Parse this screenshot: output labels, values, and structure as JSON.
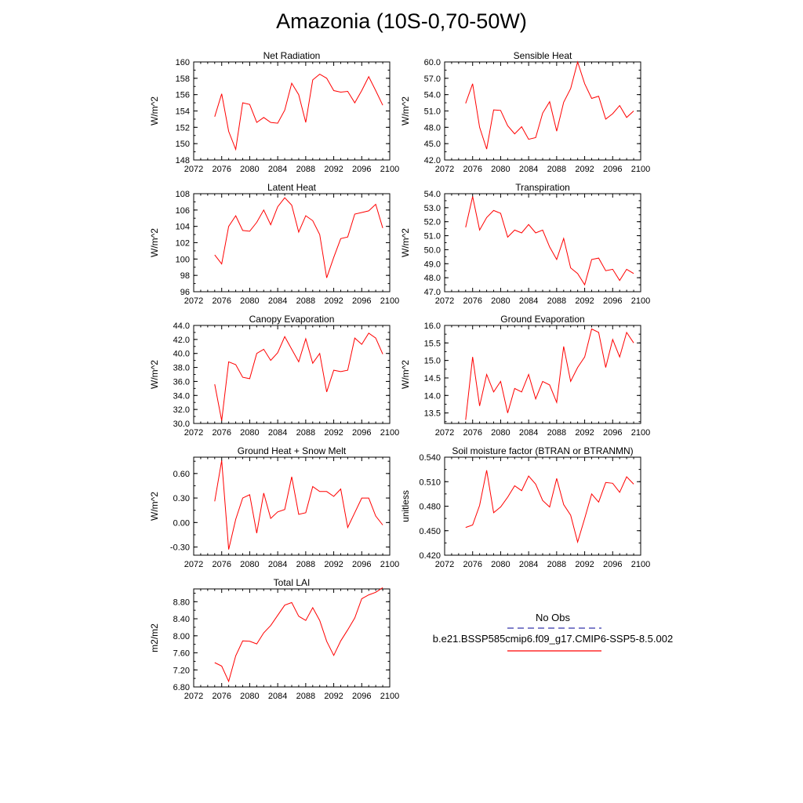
{
  "title": "Amazonia (10S-0,70-50W)",
  "legend": {
    "items": [
      {
        "label": "No Obs",
        "color": "#3333aa",
        "dash": "8,5"
      },
      {
        "label": "b.e21.BSSP585cmip6.f09_g17.CMIP6-SSP5-8.5.002",
        "color": "#ff0000",
        "dash": ""
      }
    ]
  },
  "chart_data": [
    {
      "type": "line",
      "title": "Net Radiation",
      "ylabel": "W/m^2",
      "xlim": [
        2072,
        2100
      ],
      "xticks": [
        "2072",
        "2076",
        "2080",
        "2084",
        "2088",
        "2092",
        "2096",
        "2100"
      ],
      "ylim": [
        148,
        160
      ],
      "yticks": [
        "148",
        "150",
        "152",
        "154",
        "156",
        "158",
        "160"
      ],
      "x": [
        2075,
        2076,
        2077,
        2078,
        2079,
        2080,
        2081,
        2082,
        2083,
        2084,
        2085,
        2086,
        2087,
        2088,
        2089,
        2090,
        2091,
        2092,
        2093,
        2094,
        2095,
        2096,
        2097,
        2098,
        2099
      ],
      "series": [
        {
          "color": "#ff0000",
          "values": [
            153.3,
            156.1,
            151.5,
            149.3,
            155.0,
            154.8,
            152.6,
            153.2,
            152.6,
            152.5,
            154.1,
            157.4,
            156.0,
            152.6,
            157.8,
            158.5,
            158.0,
            156.5,
            156.3,
            156.4,
            155.0,
            156.5,
            158.2,
            156.5,
            154.7
          ]
        }
      ]
    },
    {
      "type": "line",
      "title": "Sensible Heat",
      "ylabel": "W/m^2",
      "xlim": [
        2072,
        2100
      ],
      "xticks": [
        "2072",
        "2076",
        "2080",
        "2084",
        "2088",
        "2092",
        "2096",
        "2100"
      ],
      "ylim": [
        42,
        60
      ],
      "yticks": [
        "42.0",
        "45.0",
        "48.0",
        "51.0",
        "54.0",
        "57.0",
        "60.0"
      ],
      "x": [
        2075,
        2076,
        2077,
        2078,
        2079,
        2080,
        2081,
        2082,
        2083,
        2084,
        2085,
        2086,
        2087,
        2088,
        2089,
        2090,
        2091,
        2092,
        2093,
        2094,
        2095,
        2096,
        2097,
        2098,
        2099
      ],
      "series": [
        {
          "color": "#ff0000",
          "values": [
            52.4,
            56.0,
            48.0,
            44.0,
            51.2,
            51.1,
            48.3,
            46.8,
            48.1,
            45.8,
            46.1,
            50.6,
            52.7,
            47.3,
            52.6,
            55.1,
            60.0,
            56.0,
            53.3,
            53.7,
            49.5,
            50.5,
            52.0,
            49.8,
            51.0
          ]
        }
      ]
    },
    {
      "type": "line",
      "title": "Latent Heat",
      "ylabel": "W/m^2",
      "xlim": [
        2072,
        2100
      ],
      "xticks": [
        "2072",
        "2076",
        "2080",
        "2084",
        "2088",
        "2092",
        "2096",
        "2100"
      ],
      "ylim": [
        96,
        108
      ],
      "yticks": [
        "96",
        "98",
        "100",
        "102",
        "104",
        "106",
        "108"
      ],
      "x": [
        2075,
        2076,
        2077,
        2078,
        2079,
        2080,
        2081,
        2082,
        2083,
        2084,
        2085,
        2086,
        2087,
        2088,
        2089,
        2090,
        2091,
        2092,
        2093,
        2094,
        2095,
        2096,
        2097,
        2098,
        2099
      ],
      "series": [
        {
          "color": "#ff0000",
          "values": [
            100.5,
            99.4,
            104.0,
            105.3,
            103.5,
            103.4,
            104.5,
            106.0,
            104.2,
            106.4,
            107.5,
            106.6,
            103.3,
            105.3,
            104.7,
            103.0,
            97.7,
            100.2,
            102.5,
            102.7,
            105.5,
            105.7,
            105.9,
            106.7,
            103.8
          ]
        }
      ]
    },
    {
      "type": "line",
      "title": "Transpiration",
      "ylabel": "W/m^2",
      "xlim": [
        2072,
        2100
      ],
      "xticks": [
        "2072",
        "2076",
        "2080",
        "2084",
        "2088",
        "2092",
        "2096",
        "2100"
      ],
      "ylim": [
        47,
        54
      ],
      "yticks": [
        "47.0",
        "48.0",
        "49.0",
        "50.0",
        "51.0",
        "52.0",
        "53.0",
        "54.0"
      ],
      "x": [
        2075,
        2076,
        2077,
        2078,
        2079,
        2080,
        2081,
        2082,
        2083,
        2084,
        2085,
        2086,
        2087,
        2088,
        2089,
        2090,
        2091,
        2092,
        2093,
        2094,
        2095,
        2096,
        2097,
        2098,
        2099
      ],
      "series": [
        {
          "color": "#ff0000",
          "values": [
            51.6,
            53.8,
            51.4,
            52.3,
            52.8,
            52.6,
            50.9,
            51.4,
            51.2,
            51.8,
            51.2,
            51.4,
            50.2,
            49.3,
            50.8,
            48.7,
            48.3,
            47.5,
            49.3,
            49.4,
            48.5,
            48.6,
            47.8,
            48.6,
            48.3
          ]
        }
      ]
    },
    {
      "type": "line",
      "title": "Canopy Evaporation",
      "ylabel": "W/m^2",
      "xlim": [
        2072,
        2100
      ],
      "xticks": [
        "2072",
        "2076",
        "2080",
        "2084",
        "2088",
        "2092",
        "2096",
        "2100"
      ],
      "ylim": [
        30,
        44
      ],
      "yticks": [
        "30.0",
        "32.0",
        "34.0",
        "36.0",
        "38.0",
        "40.0",
        "42.0",
        "44.0"
      ],
      "x": [
        2075,
        2076,
        2077,
        2078,
        2079,
        2080,
        2081,
        2082,
        2083,
        2084,
        2085,
        2086,
        2087,
        2088,
        2089,
        2090,
        2091,
        2092,
        2093,
        2094,
        2095,
        2096,
        2097,
        2098,
        2099
      ],
      "series": [
        {
          "color": "#ff0000",
          "values": [
            35.6,
            30.4,
            38.8,
            38.4,
            36.6,
            36.4,
            40.0,
            40.6,
            39.0,
            40.1,
            42.4,
            40.6,
            38.8,
            42.1,
            38.6,
            40.0,
            34.5,
            37.6,
            37.4,
            37.6,
            42.2,
            41.3,
            42.9,
            42.2,
            39.9
          ]
        }
      ]
    },
    {
      "type": "line",
      "title": "Ground Evaporation",
      "ylabel": "W/m^2",
      "xlim": [
        2072,
        2100
      ],
      "xticks": [
        "2072",
        "2076",
        "2080",
        "2084",
        "2088",
        "2092",
        "2096",
        "2100"
      ],
      "ylim": [
        13.2,
        16.0
      ],
      "yticks": [
        "13.5",
        "14.0",
        "14.5",
        "15.0",
        "15.5",
        "16.0"
      ],
      "x": [
        2075,
        2076,
        2077,
        2078,
        2079,
        2080,
        2081,
        2082,
        2083,
        2084,
        2085,
        2086,
        2087,
        2088,
        2089,
        2090,
        2091,
        2092,
        2093,
        2094,
        2095,
        2096,
        2097,
        2098,
        2099
      ],
      "series": [
        {
          "color": "#ff0000",
          "values": [
            13.3,
            15.1,
            13.7,
            14.6,
            14.1,
            14.4,
            13.5,
            14.2,
            14.1,
            14.6,
            13.9,
            14.4,
            14.3,
            13.8,
            15.4,
            14.4,
            14.8,
            15.1,
            15.9,
            15.8,
            14.8,
            15.6,
            15.1,
            15.8,
            15.5
          ]
        }
      ]
    },
    {
      "type": "line",
      "title": "Ground Heat + Snow Melt",
      "ylabel": "W/m^2",
      "xlim": [
        2072,
        2100
      ],
      "xticks": [
        "2072",
        "2076",
        "2080",
        "2084",
        "2088",
        "2092",
        "2096",
        "2100"
      ],
      "ylim": [
        -0.4,
        0.8
      ],
      "yticks": [
        "-0.30",
        "0.00",
        "0.30",
        "0.60"
      ],
      "x": [
        2075,
        2076,
        2077,
        2078,
        2079,
        2080,
        2081,
        2082,
        2083,
        2084,
        2085,
        2086,
        2087,
        2088,
        2089,
        2090,
        2091,
        2092,
        2093,
        2094,
        2095,
        2096,
        2097,
        2098,
        2099
      ],
      "series": [
        {
          "color": "#ff0000",
          "values": [
            0.26,
            0.76,
            -0.33,
            0.04,
            0.3,
            0.34,
            -0.13,
            0.36,
            0.05,
            0.13,
            0.16,
            0.56,
            0.1,
            0.12,
            0.44,
            0.38,
            0.38,
            0.32,
            0.41,
            -0.06,
            0.12,
            0.3,
            0.3,
            0.08,
            -0.03
          ]
        }
      ]
    },
    {
      "type": "line",
      "title": "Soil moisture factor (BTRAN or BTRANMN)",
      "ylabel": "unitless",
      "xlim": [
        2072,
        2100
      ],
      "xticks": [
        "2072",
        "2076",
        "2080",
        "2084",
        "2088",
        "2092",
        "2096",
        "2100"
      ],
      "ylim": [
        0.42,
        0.54
      ],
      "yticks": [
        "0.420",
        "0.450",
        "0.480",
        "0.510",
        "0.540"
      ],
      "x": [
        2075,
        2076,
        2077,
        2078,
        2079,
        2080,
        2081,
        2082,
        2083,
        2084,
        2085,
        2086,
        2087,
        2088,
        2089,
        2090,
        2091,
        2092,
        2093,
        2094,
        2095,
        2096,
        2097,
        2098,
        2099
      ],
      "series": [
        {
          "color": "#ff0000",
          "values": [
            0.454,
            0.457,
            0.481,
            0.524,
            0.472,
            0.479,
            0.491,
            0.505,
            0.499,
            0.517,
            0.507,
            0.487,
            0.479,
            0.514,
            0.482,
            0.469,
            0.436,
            0.465,
            0.495,
            0.485,
            0.509,
            0.508,
            0.497,
            0.516,
            0.507
          ]
        }
      ]
    },
    {
      "type": "line",
      "title": "Total LAI",
      "ylabel": "m2/m2",
      "xlim": [
        2072,
        2100
      ],
      "xticks": [
        "2072",
        "2076",
        "2080",
        "2084",
        "2088",
        "2092",
        "2096",
        "2100"
      ],
      "ylim": [
        6.8,
        9.1
      ],
      "yticks": [
        "6.80",
        "7.20",
        "7.60",
        "8.00",
        "8.40",
        "8.80"
      ],
      "x": [
        2075,
        2076,
        2077,
        2078,
        2079,
        2080,
        2081,
        2082,
        2083,
        2084,
        2085,
        2086,
        2087,
        2088,
        2089,
        2090,
        2091,
        2092,
        2093,
        2094,
        2095,
        2096,
        2097,
        2098,
        2099
      ],
      "series": [
        {
          "color": "#ff0000",
          "values": [
            7.37,
            7.29,
            6.93,
            7.53,
            7.88,
            7.87,
            7.81,
            8.07,
            8.24,
            8.48,
            8.72,
            8.78,
            8.46,
            8.36,
            8.66,
            8.36,
            7.87,
            7.54,
            7.88,
            8.14,
            8.42,
            8.87,
            8.96,
            9.02,
            9.13
          ]
        }
      ]
    }
  ]
}
